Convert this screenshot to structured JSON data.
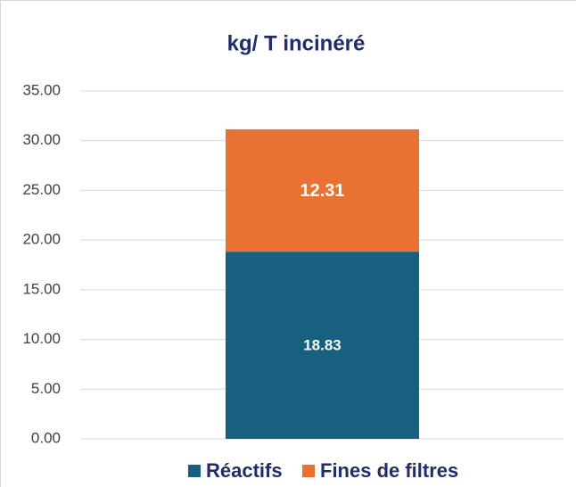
{
  "chart_data": {
    "type": "stacked_bar",
    "title": "kg/ T incinéré",
    "categories": [
      null
    ],
    "series": [
      {
        "name": "Réactifs",
        "color": "#17607f",
        "values": [
          18.83
        ]
      },
      {
        "name": "Fines de filtres",
        "color": "#e97132",
        "values": [
          12.31
        ]
      }
    ],
    "ylim": [
      0,
      35
    ],
    "yticks": [
      {
        "value": 0,
        "label": "0.00"
      },
      {
        "value": 5,
        "label": "5.00"
      },
      {
        "value": 10,
        "label": "10.00"
      },
      {
        "value": 15,
        "label": "15.00"
      },
      {
        "value": 20,
        "label": "20.00"
      },
      {
        "value": 25,
        "label": "25.00"
      },
      {
        "value": 30,
        "label": "30.00"
      },
      {
        "value": 35,
        "label": "35.00"
      }
    ],
    "grid": true,
    "legend": "bottom"
  }
}
